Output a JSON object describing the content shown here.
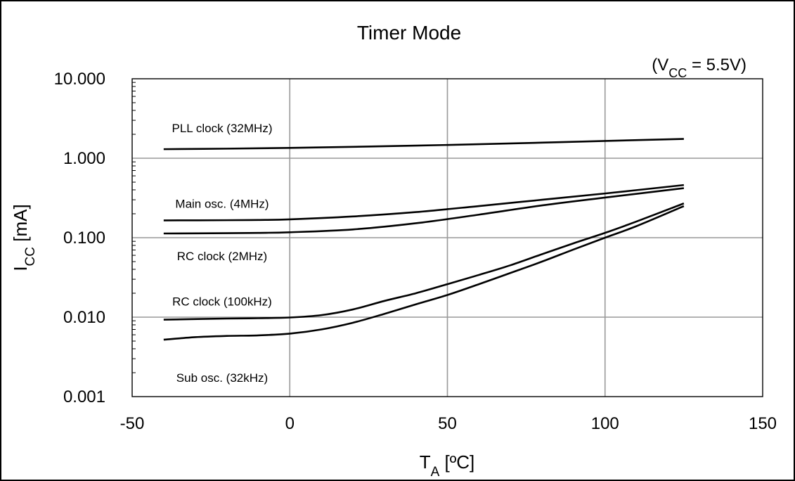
{
  "chart_data": {
    "type": "line",
    "title": "Timer Mode",
    "condition": {
      "prefix": "(V",
      "subscript": "CC",
      "suffix": " = 5.5V)"
    },
    "xlabel": {
      "main": "T",
      "subscript": "A",
      "suffix": " [ºC]"
    },
    "ylabel": {
      "main": "I",
      "subscript": "CC",
      "suffix": " [mA]"
    },
    "xlim": [
      -50,
      150
    ],
    "ylim": [
      0.001,
      10
    ],
    "yscale": "log",
    "grid": true,
    "xticks": [
      -50,
      0,
      50,
      100,
      150
    ],
    "xtick_labels": [
      "-50",
      "0",
      "50",
      "100",
      "150"
    ],
    "yticks": [
      0.001,
      0.01,
      0.1,
      1,
      10
    ],
    "ytick_labels": [
      "0.001",
      "0.010",
      "0.100",
      "1.000",
      "10.000"
    ],
    "series": [
      {
        "name": "PLL clock (32MHz)",
        "x": [
          -40,
          -20,
          0,
          20,
          40,
          60,
          80,
          100,
          125
        ],
        "y": [
          1.3,
          1.32,
          1.35,
          1.39,
          1.44,
          1.5,
          1.57,
          1.65,
          1.75
        ]
      },
      {
        "name": "Main osc. (4MHz)",
        "x": [
          -40,
          -20,
          -10,
          0,
          20,
          40,
          60,
          80,
          100,
          125
        ],
        "y": [
          0.165,
          0.166,
          0.167,
          0.17,
          0.185,
          0.21,
          0.25,
          0.3,
          0.36,
          0.46
        ]
      },
      {
        "name": "RC clock (2MHz)",
        "x": [
          -40,
          -20,
          -10,
          0,
          20,
          40,
          60,
          80,
          100,
          125
        ],
        "y": [
          0.113,
          0.114,
          0.115,
          0.117,
          0.127,
          0.152,
          0.195,
          0.255,
          0.32,
          0.42
        ]
      },
      {
        "name": "RC clock (100kHz)",
        "x": [
          -40,
          -20,
          -10,
          0,
          10,
          20,
          30,
          40,
          50,
          60,
          70,
          80,
          90,
          100,
          110,
          125
        ],
        "y": [
          0.0093,
          0.0096,
          0.0097,
          0.0099,
          0.0106,
          0.0125,
          0.016,
          0.02,
          0.026,
          0.034,
          0.045,
          0.062,
          0.085,
          0.115,
          0.16,
          0.27
        ]
      },
      {
        "name": "Sub osc. (32kHz)",
        "x": [
          -40,
          -30,
          -20,
          -10,
          0,
          10,
          20,
          30,
          40,
          50,
          60,
          70,
          80,
          90,
          100,
          110,
          125
        ],
        "y": [
          0.0052,
          0.0056,
          0.0058,
          0.0059,
          0.0062,
          0.007,
          0.0085,
          0.011,
          0.0145,
          0.019,
          0.026,
          0.036,
          0.05,
          0.071,
          0.1,
          0.14,
          0.25
        ]
      }
    ]
  }
}
